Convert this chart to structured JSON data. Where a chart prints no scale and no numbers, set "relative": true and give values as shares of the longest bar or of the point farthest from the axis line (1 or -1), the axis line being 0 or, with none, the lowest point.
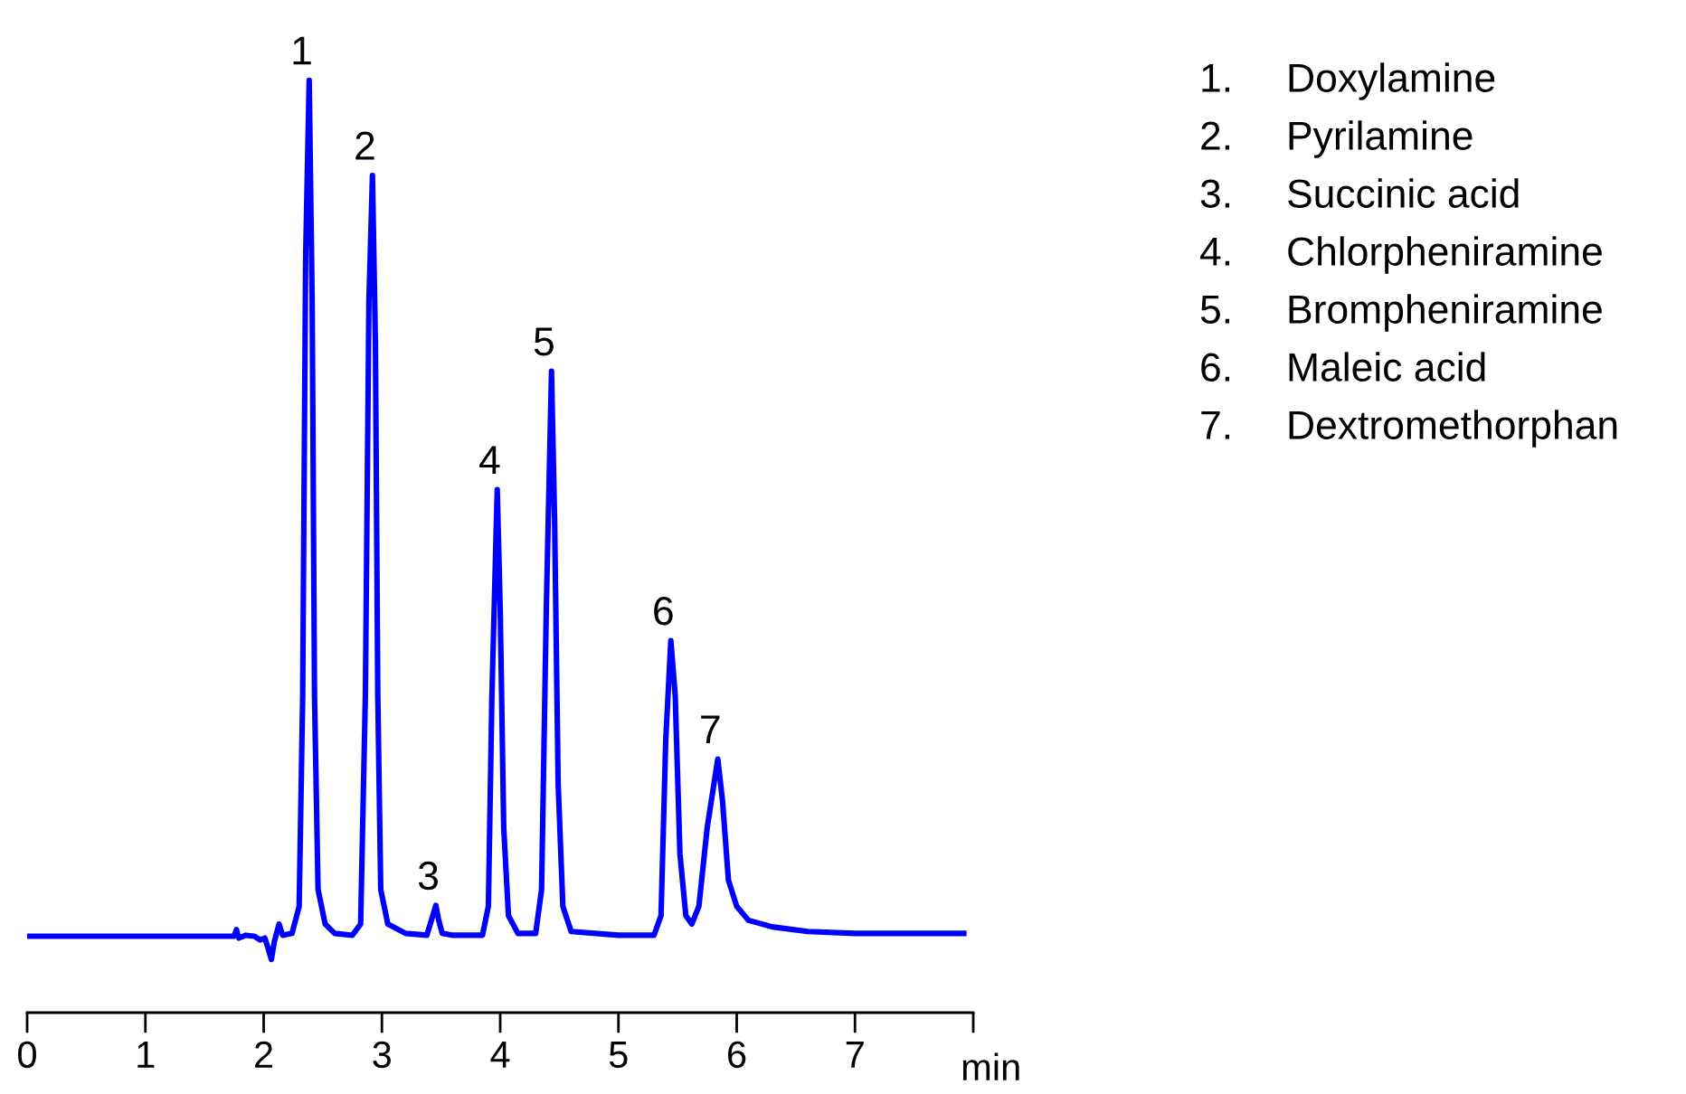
{
  "chart_data": {
    "type": "line",
    "relative": true,
    "xlabel": "min",
    "xlim": [
      0,
      8
    ],
    "xticks": [
      0,
      1,
      2,
      3,
      4,
      5,
      6,
      7,
      {
        "value": 8,
        "label": null
      }
    ],
    "tick_labels": "x",
    "grid": false,
    "legend": false,
    "marker": "none",
    "line_style": "solid",
    "series": [
      {
        "color": "#0000ff",
        "x": [
          0,
          1.75,
          1.77,
          1.79,
          1.85,
          1.92,
          1.97,
          2.01,
          2.04,
          2.065,
          2.09,
          2.13,
          2.16,
          2.24,
          2.3,
          2.33,
          2.355,
          2.385,
          2.41,
          2.43,
          2.46,
          2.52,
          2.6,
          2.75,
          2.82,
          2.86,
          2.89,
          2.92,
          2.945,
          2.965,
          2.99,
          3.05,
          3.2,
          3.38,
          3.43,
          3.456,
          3.48,
          3.51,
          3.6,
          3.85,
          3.9,
          3.93,
          3.975,
          4.0,
          4.03,
          4.07,
          4.15,
          4.3,
          4.35,
          4.39,
          4.434,
          4.46,
          4.49,
          4.53,
          4.6,
          5.0,
          5.3,
          5.36,
          5.4,
          5.443,
          5.48,
          5.52,
          5.57,
          5.62,
          5.68,
          5.75,
          5.84,
          5.88,
          5.93,
          6.0,
          6.1,
          6.3,
          6.6,
          7.0,
          7.92
        ],
        "values": [
          0.082,
          0.082,
          0.089,
          0.08,
          0.083,
          0.082,
          0.078,
          0.08,
          0.068,
          0.057,
          0.076,
          0.095,
          0.083,
          0.085,
          0.114,
          0.34,
          0.811,
          1.0,
          0.764,
          0.34,
          0.132,
          0.095,
          0.085,
          0.083,
          0.095,
          0.34,
          0.764,
          0.898,
          0.717,
          0.34,
          0.132,
          0.095,
          0.085,
          0.083,
          0.104,
          0.115,
          0.099,
          0.085,
          0.083,
          0.083,
          0.114,
          0.34,
          0.561,
          0.434,
          0.198,
          0.104,
          0.085,
          0.085,
          0.132,
          0.434,
          0.688,
          0.529,
          0.246,
          0.114,
          0.087,
          0.083,
          0.083,
          0.104,
          0.293,
          0.399,
          0.34,
          0.17,
          0.104,
          0.095,
          0.114,
          0.198,
          0.272,
          0.227,
          0.142,
          0.114,
          0.099,
          0.092,
          0.087,
          0.085,
          0.085
        ]
      }
    ],
    "annotations": [
      {
        "text": "1",
        "x": 2.385,
        "y": 1.0
      },
      {
        "text": "2",
        "x": 2.92,
        "y": 0.898
      },
      {
        "text": "3",
        "x": 3.456,
        "y": 0.115
      },
      {
        "text": "4",
        "x": 3.975,
        "y": 0.561
      },
      {
        "text": "5",
        "x": 4.434,
        "y": 0.688
      },
      {
        "text": "6",
        "x": 5.443,
        "y": 0.399
      },
      {
        "text": "7",
        "x": 5.84,
        "y": 0.272
      },
      "1. Doxylamine",
      "2. Pyrilamine",
      "3. Succinic acid",
      "4. Chlorpheniramine",
      "5. Brompheniramine",
      "6. Maleic acid",
      "7. Dextromethorphan"
    ]
  }
}
